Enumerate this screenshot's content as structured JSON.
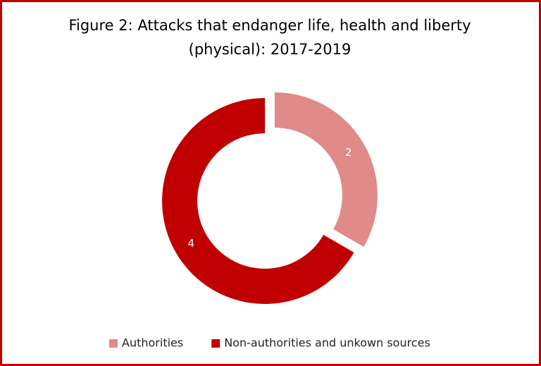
{
  "chart_data": {
    "type": "donut",
    "title": "Figure 2: Attacks that endanger life, health and liberty (physical): 2017-2019",
    "categories": [
      "Authorities",
      "Non-authorities and unkown sources"
    ],
    "values": [
      2,
      4
    ],
    "colors": [
      "#e08a8a",
      "#c00000"
    ],
    "legend": "bottom"
  }
}
